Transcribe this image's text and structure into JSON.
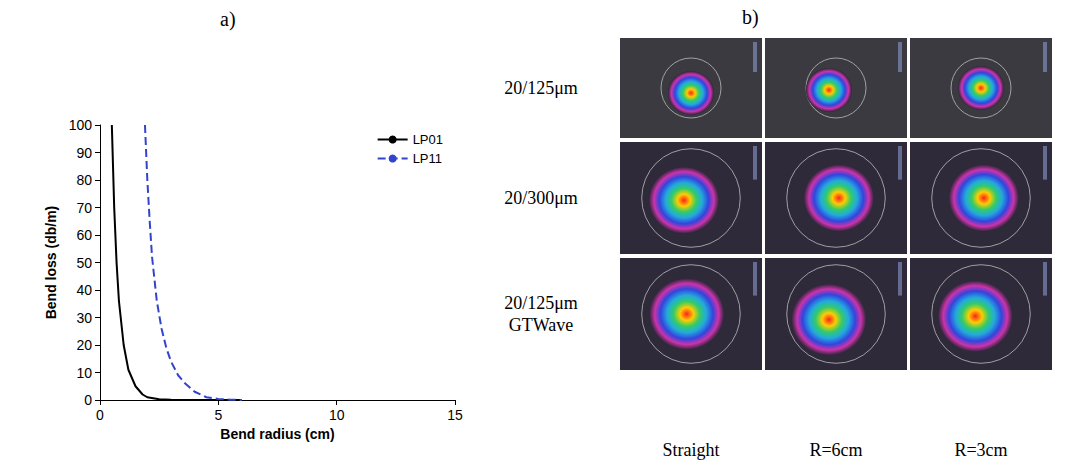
{
  "chart_data": {
    "type": "line",
    "title": "a)",
    "x_label": "Bend radius (cm)",
    "y_label": "Bend loss (db/m)",
    "xlim": [
      0,
      15
    ],
    "xticks": [
      0,
      5,
      10,
      15
    ],
    "ylim": [
      0,
      100
    ],
    "yticks": [
      0,
      10,
      20,
      30,
      40,
      50,
      60,
      70,
      80,
      90,
      100
    ],
    "grid": false,
    "legend": "upper right",
    "series": [
      {
        "name": "LP01",
        "color": "#000000",
        "line_style": "solid",
        "x": [
          0.5,
          0.6,
          0.7,
          0.8,
          1.0,
          1.2,
          1.5,
          1.8,
          2.0,
          2.5,
          3.0,
          4.0,
          5.0,
          6.0
        ],
        "values": [
          100,
          70,
          50,
          36,
          20,
          11,
          5,
          2,
          1,
          0.3,
          0.1,
          0,
          0,
          0
        ]
      },
      {
        "name": "LP11",
        "color": "#3344cc",
        "line_style": "dashed",
        "x": [
          1.9,
          2.0,
          2.1,
          2.2,
          2.4,
          2.6,
          2.8,
          3.0,
          3.3,
          3.6,
          4.0,
          4.5,
          5.0,
          5.5,
          6.0
        ],
        "values": [
          100,
          80,
          65,
          52,
          36,
          26,
          19,
          14,
          9,
          6,
          3,
          1,
          0.4,
          0.1,
          0
        ]
      }
    ]
  },
  "panel_b": {
    "label": "b)",
    "rows": [
      "20/125μm",
      "20/300μm",
      "20/125μm GTWave"
    ],
    "columns": [
      "Straight",
      "R=6cm",
      "R=3cm"
    ]
  }
}
